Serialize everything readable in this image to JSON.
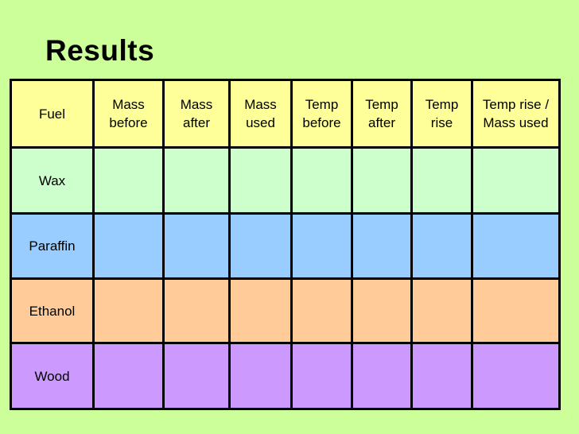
{
  "slide": {
    "title": "Results",
    "background_color": "#ccff99",
    "title_color": "#000000",
    "border_color": "#000000"
  },
  "table": {
    "header": {
      "color": "#ffff99",
      "columns": [
        "Fuel",
        "Mass before",
        "Mass after",
        "Mass used",
        "Temp before",
        "Temp after",
        "Temp rise",
        "Temp rise / Mass used"
      ]
    },
    "rows": [
      {
        "label": "Wax",
        "color": "#ccffcc",
        "values": [
          "",
          "",
          "",
          "",
          "",
          "",
          ""
        ]
      },
      {
        "label": "Paraffin",
        "color": "#99ccff",
        "values": [
          "",
          "",
          "",
          "",
          "",
          "",
          ""
        ]
      },
      {
        "label": "Ethanol",
        "color": "#ffcc99",
        "values": [
          "",
          "",
          "",
          "",
          "",
          "",
          ""
        ]
      },
      {
        "label": "Wood",
        "color": "#cc99ff",
        "values": [
          "",
          "",
          "",
          "",
          "",
          "",
          ""
        ]
      }
    ]
  }
}
